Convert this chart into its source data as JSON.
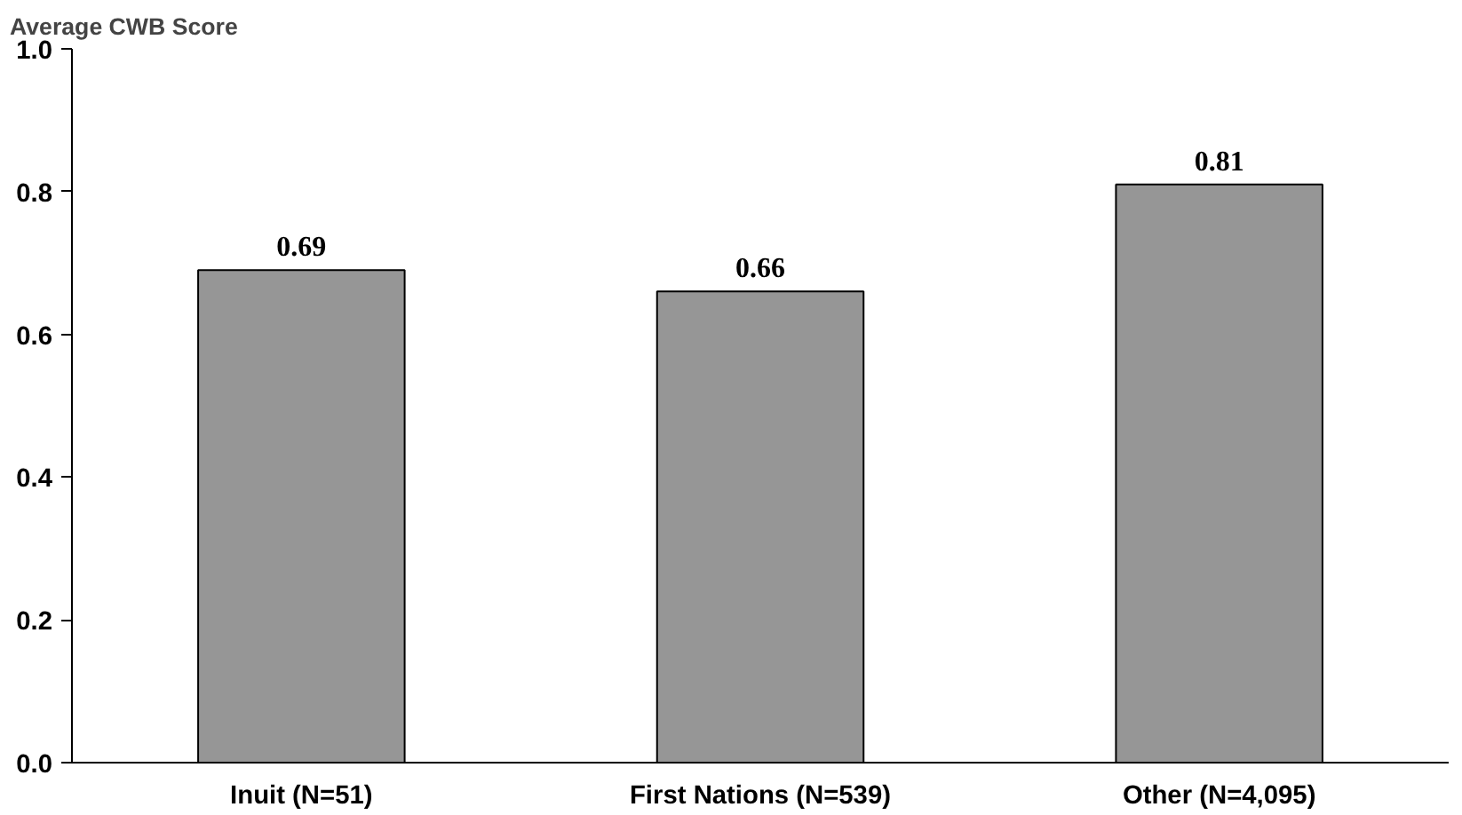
{
  "chart_data": {
    "type": "bar",
    "ylabel": "Average CWB Score",
    "categories": [
      "Inuit (N=51)",
      "First Nations (N=539)",
      "Other (N=4,095)"
    ],
    "values": [
      0.69,
      0.66,
      0.81
    ],
    "color": "#969696",
    "ylim": [
      0,
      1
    ],
    "yticks": [
      {
        "value": 0,
        "label": "0.0"
      },
      {
        "value": 0.2,
        "label": "0.2"
      },
      {
        "value": 0.4,
        "label": "0.4"
      },
      {
        "value": 0.6,
        "label": "0.6"
      },
      {
        "value": 0.8,
        "label": "0.8"
      },
      {
        "value": 1,
        "label": "1.0"
      }
    ],
    "grid": false,
    "data_labels": true
  }
}
